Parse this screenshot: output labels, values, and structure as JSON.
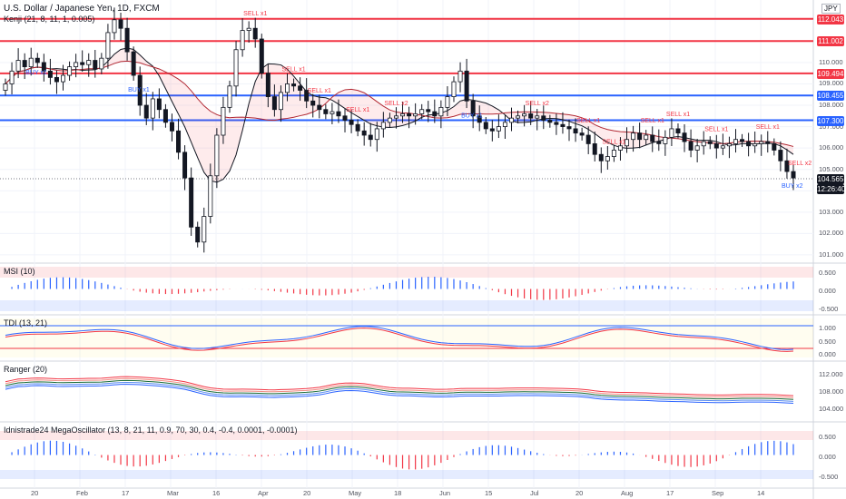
{
  "header": {
    "symbol_title": "U.S. Dollar / Japanese Yen, 1D, FXCM",
    "indicator_line": "Kenji (21, 8, 11, 1, 0.005)",
    "currency_badge": "JPY"
  },
  "price_axis": {
    "ticks": [
      "110.000",
      "109.000",
      "108.000",
      "107.000",
      "106.000",
      "105.000",
      "104.000",
      "103.000",
      "102.000",
      "101.000"
    ],
    "levels": [
      {
        "label": "112.043",
        "value": 112.043,
        "color": "#f23645"
      },
      {
        "label": "111.002",
        "value": 111.002,
        "color": "#f23645"
      },
      {
        "label": "109.494",
        "value": 109.494,
        "color": "#f23645"
      },
      {
        "label": "108.455",
        "value": 108.455,
        "color": "#2962ff"
      },
      {
        "label": "107.300",
        "value": 107.3,
        "color": "#2962ff"
      },
      {
        "label": "104.565",
        "value": 104.565,
        "color": "#131722"
      },
      {
        "label": "12:26:40",
        "value": 104.1,
        "color": "#131722"
      }
    ]
  },
  "signals": [
    {
      "text": "BUY x1",
      "day": 4
    },
    {
      "text": "BUY x1",
      "day": 20
    },
    {
      "text": "SELL x1",
      "day": 38
    },
    {
      "text": "SELL x1",
      "day": 44
    },
    {
      "text": "SELL x1",
      "day": 48
    },
    {
      "text": "SELL x1",
      "day": 54
    },
    {
      "text": "SELL x2",
      "day": 60
    },
    {
      "text": "BUY x1",
      "day": 72
    },
    {
      "text": "SELL x2",
      "day": 82
    },
    {
      "text": "SELL x1",
      "day": 90
    },
    {
      "text": "SELL x1",
      "day": 94
    },
    {
      "text": "SELL x1",
      "day": 100
    },
    {
      "text": "SELL x1",
      "day": 104
    },
    {
      "text": "SELL x1",
      "day": 110
    },
    {
      "text": "SELL x1",
      "day": 118
    },
    {
      "text": "BUY x2",
      "day": 122
    },
    {
      "text": "SELL x2",
      "day": 132
    }
  ],
  "panes": [
    {
      "name": "MSI (10)",
      "ticks": [
        "0.500",
        "0.000",
        "-0.500"
      ]
    },
    {
      "name": "TDI (13, 21)",
      "ticks": [
        "1.000",
        "0.500",
        "0.000"
      ]
    },
    {
      "name": "Ranger (20)",
      "ticks": [
        "112.000",
        "108.000",
        "104.000"
      ]
    },
    {
      "name": "Idnistrade24 MegaOscillator (13, 8, 21, 11, 0.9, 70, 30, 0.4, -0.4, 0.0001, -0.0001)",
      "ticks": [
        "0.500",
        "0.000",
        "-0.500"
      ]
    }
  ],
  "time_axis": [
    "20",
    "Feb",
    "17",
    "Mar",
    "16",
    "Apr",
    "20",
    "May",
    "18",
    "Jun",
    "15",
    "Jul",
    "20",
    "Aug",
    "17",
    "Sep",
    "14"
  ],
  "chart_data": {
    "type": "candlestick",
    "title": "U.S. Dollar / Japanese Yen, 1D, FXCM",
    "ylim": [
      100.7,
      112.5
    ],
    "levels": [
      112.043,
      111.002,
      109.494,
      108.455,
      107.3
    ],
    "close": [
      109.0,
      109.6,
      110.1,
      109.8,
      110.2,
      110.0,
      109.6,
      109.3,
      109.1,
      109.4,
      109.8,
      110.0,
      109.9,
      110.1,
      109.7,
      110.2,
      111.4,
      112.0,
      111.6,
      110.5,
      109.4,
      108.0,
      107.4,
      108.3,
      107.8,
      107.2,
      106.8,
      105.8,
      104.6,
      102.3,
      101.6,
      102.8,
      104.7,
      106.6,
      107.9,
      108.9,
      110.6,
      111.5,
      111.6,
      111.1,
      109.5,
      108.4,
      107.8,
      108.6,
      109.0,
      108.9,
      108.7,
      108.2,
      108.0,
      107.8,
      107.6,
      107.7,
      107.5,
      107.3,
      107.1,
      106.8,
      106.6,
      106.4,
      106.9,
      107.2,
      107.4,
      107.5,
      107.6,
      107.5,
      107.6,
      107.8,
      107.7,
      107.5,
      107.9,
      108.4,
      109.1,
      109.6,
      108.2,
      107.5,
      107.2,
      106.9,
      106.8,
      107.0,
      107.2,
      107.4,
      107.5,
      107.6,
      107.4,
      107.5,
      107.3,
      107.2,
      107.1,
      107.0,
      106.9,
      106.7,
      106.6,
      106.2,
      105.7,
      105.4,
      105.6,
      105.9,
      106.1,
      106.4,
      106.7,
      106.4,
      106.6,
      106.3,
      106.2,
      106.5,
      106.9,
      106.7,
      106.3,
      105.9,
      106.1,
      106.3,
      106.2,
      106.0,
      106.1,
      106.2,
      106.4,
      106.3,
      106.1,
      106.2,
      106.3,
      106.2,
      105.9,
      105.4,
      104.9,
      104.6
    ]
  }
}
